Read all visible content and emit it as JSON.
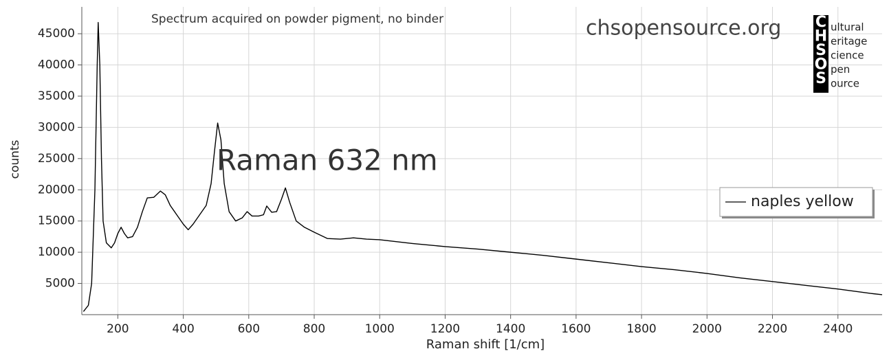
{
  "chart_data": {
    "type": "line",
    "subtitle": "Spectrum acquired on powder pigment, no binder",
    "annotations": {
      "site": "chsopensource.org",
      "title": "Raman 632 nm"
    },
    "logo": {
      "letters": [
        "C",
        "H",
        "S",
        "O",
        "S"
      ],
      "words": [
        "ultural",
        "eritage",
        "cience",
        "pen",
        "ource"
      ]
    },
    "xlabel": "Raman shift [1/cm]",
    "ylabel": "counts",
    "xlim": [
      90,
      2535
    ],
    "ylim": [
      0,
      49300
    ],
    "xticks": [
      200,
      400,
      600,
      800,
      1000,
      1200,
      1400,
      1600,
      1800,
      2000,
      2200,
      2400
    ],
    "yticks": [
      5000,
      10000,
      15000,
      20000,
      25000,
      30000,
      35000,
      40000,
      45000
    ],
    "grid": true,
    "legend": "right",
    "series": [
      {
        "name": "naples yellow",
        "color": "#000000",
        "x": [
          95,
          110,
          120,
          130,
          137,
          140,
          145,
          150,
          155,
          165,
          180,
          190,
          200,
          210,
          220,
          230,
          245,
          260,
          275,
          290,
          310,
          330,
          345,
          360,
          380,
          400,
          415,
          430,
          450,
          470,
          485,
          495,
          505,
          515,
          525,
          540,
          560,
          580,
          595,
          610,
          630,
          645,
          655,
          670,
          685,
          700,
          712,
          725,
          745,
          770,
          800,
          840,
          880,
          920,
          960,
          1000,
          1100,
          1200,
          1300,
          1400,
          1500,
          1600,
          1700,
          1800,
          1900,
          2000,
          2100,
          2200,
          2300,
          2400,
          2500,
          2535
        ],
        "values": [
          500,
          1500,
          5000,
          20000,
          40000,
          46800,
          40000,
          25000,
          15000,
          11500,
          10700,
          11500,
          13000,
          14000,
          13000,
          12300,
          12500,
          14000,
          16500,
          18700,
          18800,
          19800,
          19200,
          17500,
          16000,
          14500,
          13600,
          14500,
          16000,
          17500,
          21000,
          26000,
          30700,
          28000,
          21000,
          16500,
          15000,
          15500,
          16500,
          15800,
          15800,
          16000,
          17400,
          16400,
          16500,
          18500,
          20300,
          18000,
          15000,
          14000,
          13200,
          12200,
          12100,
          12300,
          12100,
          12000,
          11400,
          10900,
          10500,
          10000,
          9500,
          8900,
          8300,
          7700,
          7200,
          6600,
          5900,
          5300,
          4700,
          4100,
          3400,
          3200
        ]
      }
    ]
  }
}
